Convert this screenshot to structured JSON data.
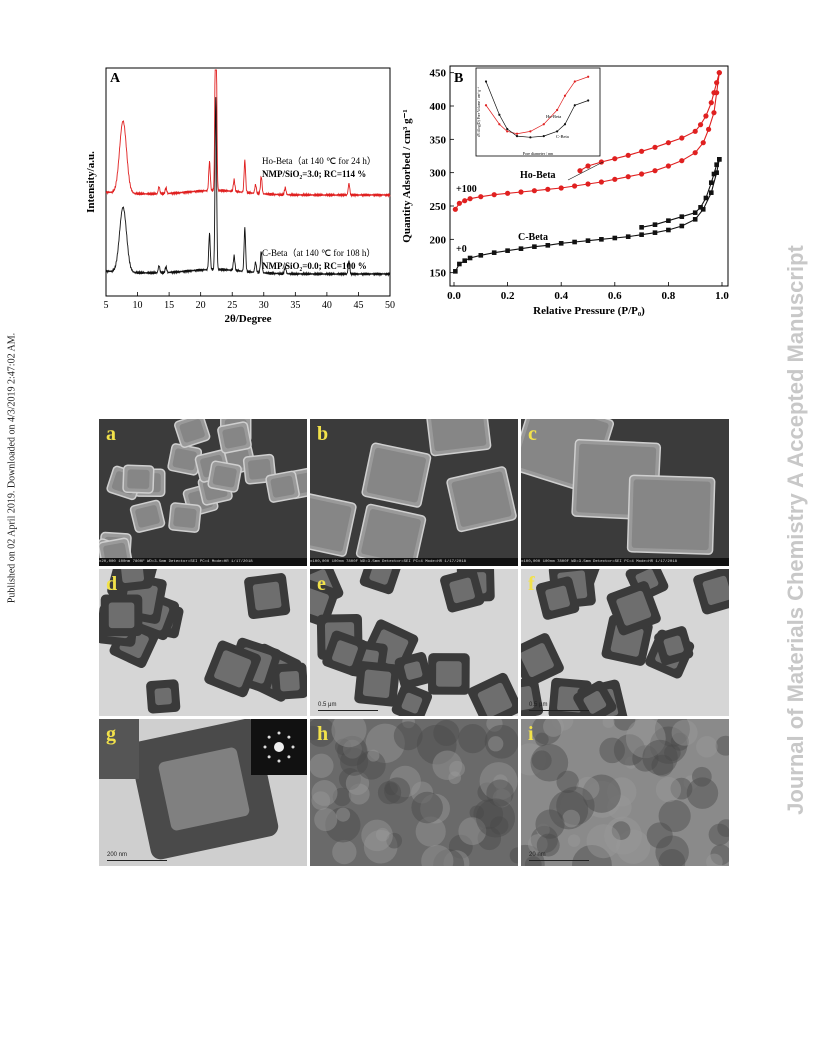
{
  "sidebar_left": "Published on 02 April 2019. Downloaded on 4/3/2019 2:47:02 AM.",
  "sidebar_right": "Journal of Materials Chemistry A Accepted Manuscript",
  "chart_data": [
    {
      "type": "line",
      "panel_label": "A",
      "xlabel": "2θ/Degree",
      "ylabel": "Intensity/a.u.",
      "xlim": [
        5,
        50
      ],
      "xticks": [
        5,
        10,
        15,
        20,
        25,
        30,
        35,
        40,
        45,
        50
      ],
      "grid": false,
      "series": [
        {
          "name": "Ho-Beta",
          "color": "#e02020",
          "baseline": 0.72,
          "peaks": [
            [
              7.7,
              0.5
            ],
            [
              13.4,
              0.05
            ],
            [
              14.5,
              0.04
            ],
            [
              21.4,
              0.2
            ],
            [
              22.4,
              1.6
            ],
            [
              25.3,
              0.08
            ],
            [
              27.0,
              0.22
            ],
            [
              28.7,
              0.06
            ],
            [
              29.6,
              0.12
            ],
            [
              33.4,
              0.05
            ],
            [
              43.5,
              0.08
            ]
          ],
          "annotations": [
            "Ho-Beta（at 140 ℃ for 24 h）",
            "NMP/SiO₂=3.0; RC=114 %"
          ]
        },
        {
          "name": "C-Beta",
          "color": "#111111",
          "baseline": 0.0,
          "peaks": [
            [
              7.7,
              0.45
            ],
            [
              13.4,
              0.05
            ],
            [
              14.5,
              0.04
            ],
            [
              21.4,
              0.25
            ],
            [
              22.4,
              1.2
            ],
            [
              25.3,
              0.1
            ],
            [
              27.0,
              0.3
            ],
            [
              28.7,
              0.07
            ],
            [
              29.6,
              0.15
            ],
            [
              33.4,
              0.05
            ],
            [
              43.5,
              0.09
            ]
          ],
          "annotations": [
            "C-Beta（at 140 ℃ for 108 h）",
            "NMP/SiO₂=0.0; RC=100 %"
          ]
        }
      ]
    },
    {
      "type": "scatter",
      "panel_label": "B",
      "xlabel": "Relative Pressure (P/P₀)",
      "ylabel": "Quantity Adsorbed / cm³ g⁻¹",
      "xlim": [
        0,
        1.0
      ],
      "ylim": [
        130,
        460
      ],
      "xticks": [
        "0.0",
        "0.2",
        "0.4",
        "0.6",
        "0.8",
        "1.0"
      ],
      "yticks": [
        150,
        200,
        250,
        300,
        350,
        400,
        450
      ],
      "grid": false,
      "series": [
        {
          "name": "Ho-Beta",
          "offset_label": "+100",
          "color": "#e02020",
          "adsorption": [
            [
              0.005,
              245
            ],
            [
              0.02,
              254
            ],
            [
              0.04,
              258
            ],
            [
              0.06,
              261
            ],
            [
              0.1,
              264
            ],
            [
              0.15,
              267
            ],
            [
              0.2,
              269
            ],
            [
              0.25,
              271
            ],
            [
              0.3,
              273
            ],
            [
              0.35,
              275
            ],
            [
              0.4,
              277
            ],
            [
              0.45,
              280
            ],
            [
              0.5,
              283
            ],
            [
              0.55,
              286
            ],
            [
              0.6,
              290
            ],
            [
              0.65,
              294
            ],
            [
              0.7,
              298
            ],
            [
              0.75,
              303
            ],
            [
              0.8,
              310
            ],
            [
              0.85,
              318
            ],
            [
              0.9,
              330
            ],
            [
              0.93,
              345
            ],
            [
              0.95,
              365
            ],
            [
              0.97,
              390
            ],
            [
              0.98,
              420
            ],
            [
              0.99,
              450
            ]
          ],
          "desorption": [
            [
              0.99,
              450
            ],
            [
              0.98,
              435
            ],
            [
              0.97,
              420
            ],
            [
              0.96,
              405
            ],
            [
              0.94,
              385
            ],
            [
              0.92,
              372
            ],
            [
              0.9,
              362
            ],
            [
              0.85,
              352
            ],
            [
              0.8,
              345
            ],
            [
              0.75,
              338
            ],
            [
              0.7,
              332
            ],
            [
              0.65,
              326
            ],
            [
              0.6,
              321
            ],
            [
              0.55,
              316
            ],
            [
              0.5,
              310
            ],
            [
              0.47,
              303
            ]
          ]
        },
        {
          "name": "C-Beta",
          "offset_label": "+0",
          "color": "#111111",
          "adsorption": [
            [
              0.005,
              152
            ],
            [
              0.02,
              163
            ],
            [
              0.04,
              168
            ],
            [
              0.06,
              172
            ],
            [
              0.1,
              176
            ],
            [
              0.15,
              180
            ],
            [
              0.2,
              183
            ],
            [
              0.25,
              186
            ],
            [
              0.3,
              189
            ],
            [
              0.35,
              191
            ],
            [
              0.4,
              194
            ],
            [
              0.45,
              196
            ],
            [
              0.5,
              198
            ],
            [
              0.55,
              200
            ],
            [
              0.6,
              202
            ],
            [
              0.65,
              204
            ],
            [
              0.7,
              207
            ],
            [
              0.75,
              210
            ],
            [
              0.8,
              214
            ],
            [
              0.85,
              220
            ],
            [
              0.9,
              230
            ],
            [
              0.93,
              245
            ],
            [
              0.96,
              270
            ],
            [
              0.98,
              300
            ],
            [
              0.99,
              320
            ]
          ],
          "desorption": [
            [
              0.99,
              320
            ],
            [
              0.98,
              312
            ],
            [
              0.97,
              298
            ],
            [
              0.96,
              285
            ],
            [
              0.94,
              262
            ],
            [
              0.92,
              248
            ],
            [
              0.9,
              240
            ],
            [
              0.85,
              234
            ],
            [
              0.8,
              228
            ],
            [
              0.75,
              222
            ],
            [
              0.7,
              218
            ]
          ]
        }
      ],
      "inset": {
        "xlabel": "Pore diameter / nm",
        "ylabel": "dV/dlog(D) Pore Volume / cm³ g⁻¹",
        "series": [
          {
            "name": "Ho-Beta",
            "color": "#e02020",
            "values": [
              [
                1,
                0.18
              ],
              [
                2,
                0.1
              ],
              [
                3,
                0.07
              ],
              [
                5,
                0.06
              ],
              [
                10,
                0.07
              ],
              [
                20,
                0.1
              ],
              [
                40,
                0.16
              ],
              [
                60,
                0.22
              ],
              [
                100,
                0.28
              ],
              [
                200,
                0.3
              ]
            ]
          },
          {
            "name": "C-Beta",
            "color": "#111111",
            "values": [
              [
                1,
                0.28
              ],
              [
                2,
                0.14
              ],
              [
                3,
                0.08
              ],
              [
                5,
                0.05
              ],
              [
                10,
                0.045
              ],
              [
                20,
                0.05
              ],
              [
                40,
                0.07
              ],
              [
                60,
                0.1
              ],
              [
                100,
                0.18
              ],
              [
                200,
                0.2
              ]
            ]
          }
        ]
      }
    }
  ],
  "micrographs": [
    {
      "label": "a",
      "kind": "sem",
      "scale": "100nm",
      "info": "x20,000   100nm   7800F   WD=3.5mm   Detector=SEI  PC=4   Mode=HR   1/17/2018"
    },
    {
      "label": "b",
      "kind": "sem",
      "scale": "100nm",
      "info": "x100,000   100nm   7800F   WD=3.5mm   Detector=SEI  PC=4   Mode=HR   1/17/2018"
    },
    {
      "label": "c",
      "kind": "sem",
      "scale": "100nm",
      "info": "x100,000   100nm   7800F   WD=3.5mm   Detector=SEI  PC=4   Mode=HR   1/17/2018"
    },
    {
      "label": "d",
      "kind": "tem",
      "scale": ""
    },
    {
      "label": "e",
      "kind": "tem",
      "scale": "0.5 μm"
    },
    {
      "label": "f",
      "kind": "tem",
      "scale": "0.5 μm"
    },
    {
      "label": "g",
      "kind": "temhr",
      "scale": "200 nm"
    },
    {
      "label": "h",
      "kind": "hr",
      "scale": ""
    },
    {
      "label": "i",
      "kind": "hr2",
      "scale": "20 nm"
    }
  ]
}
